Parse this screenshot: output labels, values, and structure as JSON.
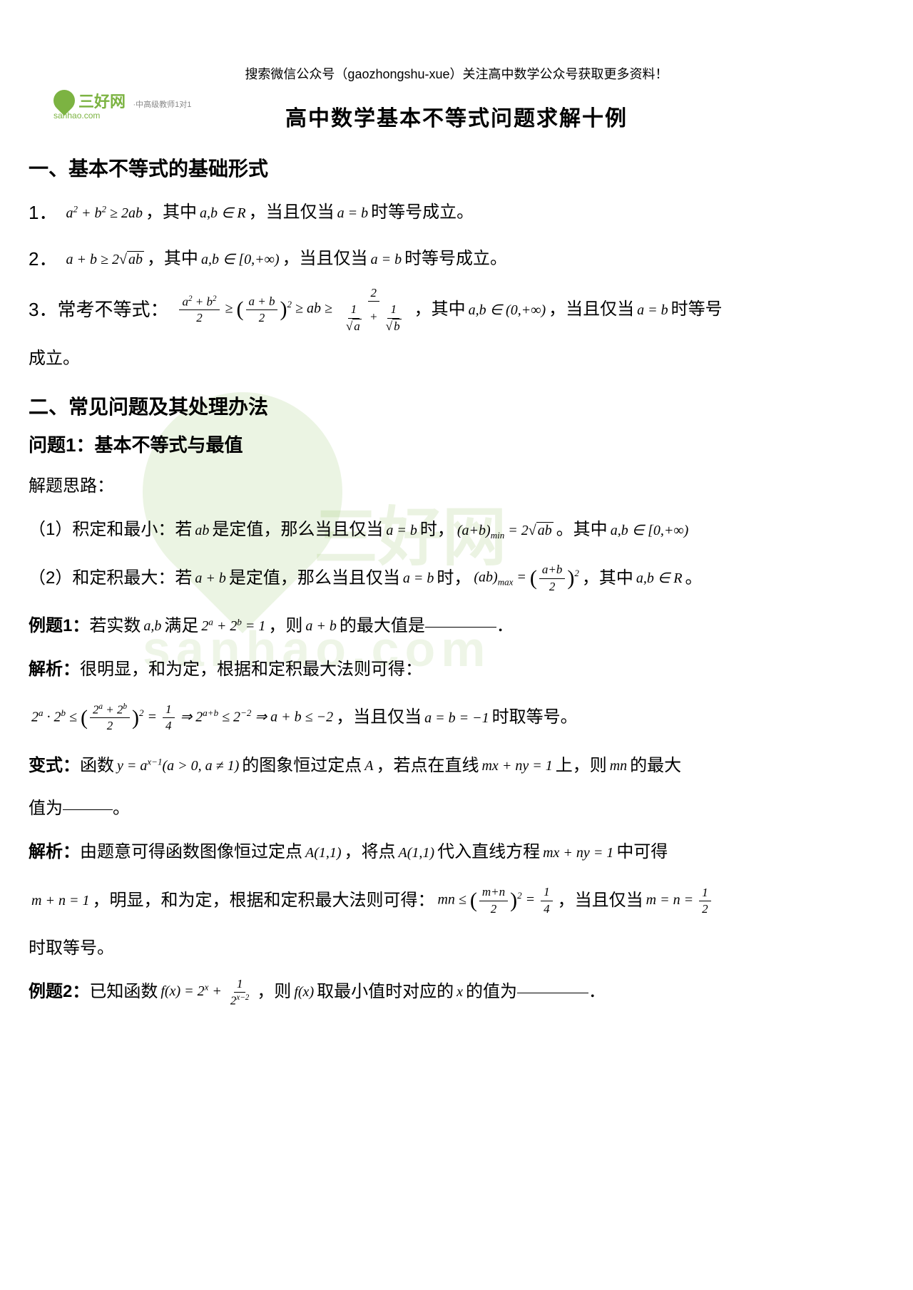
{
  "logo": {
    "brand": "三好网",
    "tagline": "·中高级教师1对1",
    "domain": "sanhao.com"
  },
  "header": {
    "note": "搜索微信公众号（gaozhongshu-xue）关注高中数学公众号获取更多资料！",
    "title": "高中数学基本不等式问题求解十例"
  },
  "section1": {
    "title": "一、基本不等式的基础形式",
    "item1_num": "1．",
    "item1_formula": "a² + b² ≥ 2ab",
    "item1_cond": "，其中",
    "item1_domain": "a,b ∈ R",
    "item1_eq": "，当且仅当",
    "item1_eqcond": "a = b",
    "item1_end": "时等号成立。",
    "item2_num": "2．",
    "item2_formula": "a + b ≥ 2√(ab)",
    "item2_cond": "，其中",
    "item2_domain": "a,b ∈ [0,+∞)",
    "item2_eq": "，当且仅当",
    "item2_eqcond": "a = b",
    "item2_end": "时等号成立。",
    "item3_num": "3．常考不等式：",
    "item3_cond": "，其中",
    "item3_domain": "a,b ∈ (0,+∞)",
    "item3_eq": "，当且仅当",
    "item3_eqcond": "a = b",
    "item3_end": "时等号",
    "item3_end2": "成立。"
  },
  "section2": {
    "title": "二、常见问题及其处理办法",
    "problem1_title": "问题1：基本不等式与最值",
    "thinking": "解题思路：",
    "rule1_pre": "（1）积定和最小：若",
    "rule1_var": "ab",
    "rule1_mid": "是定值，那么当且仅当",
    "rule1_cond": "a = b",
    "rule1_mid2": "时，",
    "rule1_formula": "(a+b)min = 2√(ab)",
    "rule1_mid3": "。其中",
    "rule1_domain": "a,b ∈ [0,+∞)",
    "rule2_pre": "（2）和定积最大：若",
    "rule2_var": "a + b",
    "rule2_mid": "是定值，那么当且仅当",
    "rule2_cond": "a = b",
    "rule2_mid2": "时，",
    "rule2_mid3": "，其中",
    "rule2_domain": "a,b ∈ R",
    "rule2_end": "。",
    "ex1_label": "例题1：",
    "ex1_pre": "若实数",
    "ex1_var": "a,b",
    "ex1_mid": "满足",
    "ex1_formula": "2ᵃ + 2ᵇ = 1",
    "ex1_mid2": "，则",
    "ex1_var2": "a + b",
    "ex1_end": "的最大值是",
    "ex1_period": "．",
    "sol1_label": "解析：",
    "sol1_text": "很明显，和为定，根据和定积最大法则可得：",
    "sol1_eq": "，当且仅当",
    "sol1_cond": "a = b = −1",
    "sol1_end": "时取等号。",
    "var_label": "变式：",
    "var_pre": "函数",
    "var_func": "y = aˣ⁻¹(a > 0, a ≠ 1)",
    "var_mid": "的图象恒过定点",
    "var_pt": "A",
    "var_mid2": "，若点在直线",
    "var_line": "mx + ny = 1",
    "var_mid3": "上，则",
    "var_var": "mn",
    "var_end": "的最大",
    "var_end2": "值为",
    "var_period": "。",
    "sol2_label": "解析：",
    "sol2_pre": "由题意可得函数图像恒过定点",
    "sol2_pt": "A(1,1)",
    "sol2_mid": "，将点",
    "sol2_pt2": "A(1,1)",
    "sol2_mid2": "代入直线方程",
    "sol2_line": "mx + ny = 1",
    "sol2_end": "中可得",
    "sol2_line2_pre": "m + n = 1",
    "sol2_line2_mid": "，明显，和为定，根据和定积最大法则可得：",
    "sol2_line2_eq": "，当且仅当",
    "sol2_line2_cond": "m = n = ",
    "sol2_line3": "时取等号。",
    "ex2_label": "例题2：",
    "ex2_pre": "已知函数",
    "ex2_mid": "，则",
    "ex2_var": "f(x)",
    "ex2_mid2": "取最小值时对应的",
    "ex2_var2": "x",
    "ex2_end": "的值为",
    "ex2_period": "．"
  },
  "colors": {
    "text": "#000000",
    "brand": "#7cb342",
    "background": "#ffffff",
    "gray": "#888888"
  },
  "typography": {
    "body_font": "Microsoft YaHei",
    "math_font": "Times New Roman",
    "title_size": 30,
    "section_size": 28,
    "body_size": 24,
    "math_size": 20
  }
}
